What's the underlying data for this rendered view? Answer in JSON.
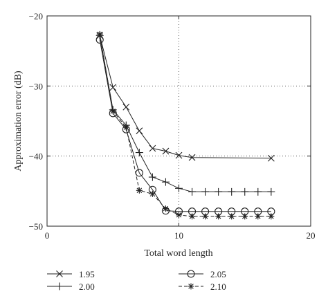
{
  "chart_data": {
    "type": "line",
    "xlabel": "Total word length",
    "ylabel": "Approximation error (dB)",
    "xlim": [
      0,
      20
    ],
    "ylim": [
      -50,
      -20
    ],
    "xticks": [
      0,
      10,
      20
    ],
    "yticks": [
      -20,
      -30,
      -40,
      -50
    ],
    "xtick_labels": [
      "0",
      "10",
      "20"
    ],
    "ytick_labels": [
      "−20",
      "−30",
      "−40",
      "−50"
    ],
    "grid": "dotted",
    "legend_position": "bottom",
    "series": [
      {
        "name": "1.95",
        "marker": "x",
        "line": "solid",
        "x": [
          4,
          5,
          6,
          7,
          8,
          9,
          10,
          11,
          17
        ],
        "y": [
          -22.8,
          -30.2,
          -33.0,
          -36.4,
          -38.9,
          -39.3,
          -39.9,
          -40.2,
          -40.3
        ]
      },
      {
        "name": "2.00",
        "marker": "plus",
        "line": "solid",
        "x": [
          4,
          5,
          6,
          7,
          8,
          9,
          10,
          11,
          12,
          13,
          14,
          15,
          16,
          17
        ],
        "y": [
          -22.8,
          -33.4,
          -35.6,
          -39.5,
          -43.0,
          -43.7,
          -44.6,
          -45.1,
          -45.1,
          -45.1,
          -45.1,
          -45.1,
          -45.1,
          -45.1
        ]
      },
      {
        "name": "2.05",
        "marker": "circle",
        "line": "solid",
        "x": [
          4,
          5,
          6,
          7,
          8,
          9,
          10,
          11,
          12,
          13,
          14,
          15,
          16,
          17
        ],
        "y": [
          -23.4,
          -33.9,
          -36.2,
          -42.4,
          -44.8,
          -47.8,
          -47.9,
          -47.9,
          -47.9,
          -47.9,
          -47.9,
          -47.9,
          -47.9,
          -47.9
        ]
      },
      {
        "name": "2.10",
        "marker": "asterisk",
        "line": "dashed",
        "x": [
          4,
          5,
          6,
          7,
          8,
          9,
          10,
          11,
          12,
          13,
          14,
          15,
          16,
          17
        ],
        "y": [
          -22.6,
          -33.6,
          -35.9,
          -44.9,
          -45.4,
          -47.5,
          -48.4,
          -48.6,
          -48.6,
          -48.6,
          -48.6,
          -48.6,
          -48.6,
          -48.6
        ]
      }
    ]
  }
}
